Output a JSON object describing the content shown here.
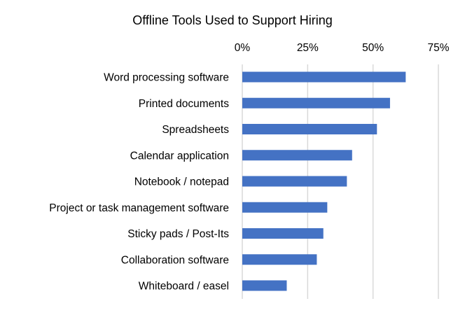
{
  "chart_data": {
    "type": "bar",
    "orientation": "horizontal",
    "title": "Offline Tools Used to Support Hiring",
    "xlabel": "",
    "ylabel": "",
    "xlim": [
      0,
      75
    ],
    "x_ticks": [
      "0%",
      "25%",
      "50%",
      "75%"
    ],
    "x_tick_values": [
      0,
      25,
      50,
      75
    ],
    "x_axis_position": "top",
    "grid": true,
    "legend": "none",
    "color": "#4472c4",
    "categories": [
      "Word processing software",
      "Printed documents",
      "Spreadsheets",
      "Calendar application",
      "Notebook / notepad",
      "Project or task management software",
      "Sticky pads / Post-Its",
      "Collaboration software",
      "Whiteboard / easel"
    ],
    "values": [
      62.5,
      56.5,
      51.5,
      42,
      40,
      32.5,
      31,
      28.5,
      17
    ]
  }
}
